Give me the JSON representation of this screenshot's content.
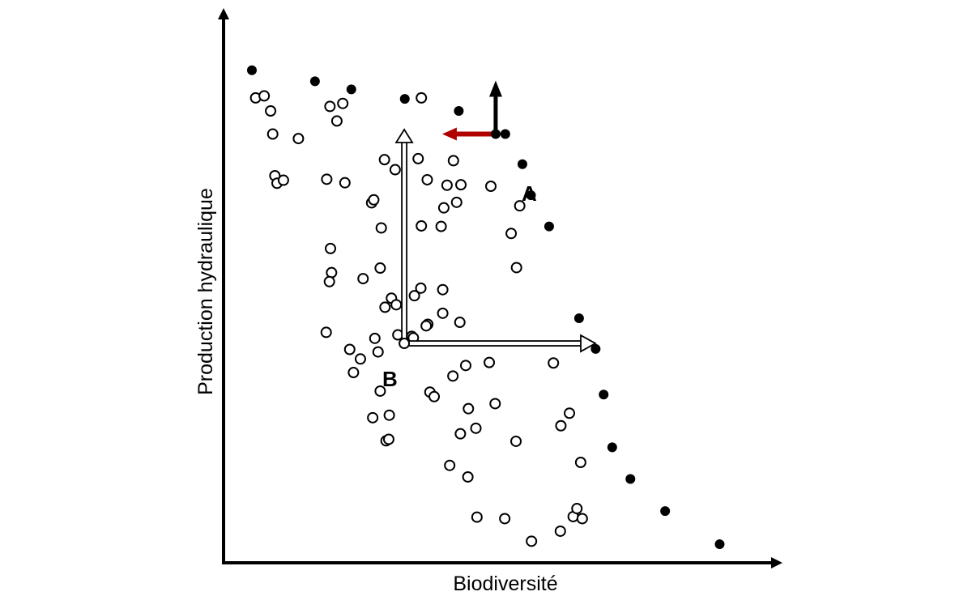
{
  "chart_data": {
    "type": "scatter",
    "xlabel": "Biodiversité",
    "ylabel": "Production hydraulique",
    "xlim": [
      0,
      100
    ],
    "ylim": [
      0,
      100
    ],
    "grid": false,
    "ticks": false,
    "series": [
      {
        "style": "filled",
        "points": [
          [
            5.3,
            98.1
          ],
          [
            17.1,
            95.9
          ],
          [
            23.9,
            94.3
          ],
          [
            33.9,
            92.4
          ],
          [
            44.0,
            90.0
          ],
          [
            52.7,
            85.4
          ],
          [
            55.9,
            79.4
          ],
          [
            57.5,
            73.2
          ],
          [
            60.9,
            67.0
          ],
          [
            66.5,
            48.7
          ],
          [
            69.6,
            42.6
          ],
          [
            71.1,
            33.5
          ],
          [
            72.7,
            23.0
          ],
          [
            76.1,
            16.7
          ],
          [
            82.6,
            10.3
          ],
          [
            92.8,
            3.7
          ]
        ]
      },
      {
        "style": "open",
        "points": [
          [
            6.0,
            92.6
          ],
          [
            7.6,
            93.0
          ],
          [
            8.8,
            90.0
          ],
          [
            9.2,
            85.4
          ],
          [
            9.6,
            77.1
          ],
          [
            14.0,
            84.5
          ],
          [
            10.0,
            75.6
          ],
          [
            11.2,
            76.2
          ],
          [
            19.3,
            76.4
          ],
          [
            22.7,
            75.7
          ],
          [
            19.9,
            90.9
          ],
          [
            21.2,
            88.0
          ],
          [
            22.3,
            91.5
          ],
          [
            27.7,
            71.7
          ],
          [
            28.1,
            72.3
          ],
          [
            29.5,
            66.7
          ],
          [
            30.1,
            80.3
          ],
          [
            32.1,
            78.3
          ],
          [
            37.0,
            92.6
          ],
          [
            36.4,
            80.5
          ],
          [
            37.0,
            67.1
          ],
          [
            38.1,
            76.3
          ],
          [
            40.7,
            67.0
          ],
          [
            41.8,
            75.2
          ],
          [
            43.6,
            71.8
          ],
          [
            41.2,
            70.7
          ],
          [
            44.4,
            75.3
          ],
          [
            43.0,
            80.1
          ],
          [
            50.0,
            75.0
          ],
          [
            53.8,
            65.6
          ],
          [
            55.4,
            71.1
          ],
          [
            54.8,
            58.8
          ],
          [
            20.0,
            62.6
          ],
          [
            20.2,
            57.8
          ],
          [
            19.8,
            56.0
          ],
          [
            26.1,
            56.6
          ],
          [
            29.3,
            58.7
          ],
          [
            30.2,
            50.9
          ],
          [
            31.4,
            52.7
          ],
          [
            32.3,
            51.4
          ],
          [
            35.7,
            53.2
          ],
          [
            36.9,
            54.7
          ],
          [
            41.0,
            54.4
          ],
          [
            38.2,
            47.5
          ],
          [
            44.2,
            47.9
          ],
          [
            41.0,
            49.7
          ],
          [
            35.2,
            45.1
          ],
          [
            32.6,
            45.4
          ],
          [
            28.3,
            44.7
          ],
          [
            28.9,
            42.0
          ],
          [
            25.6,
            40.6
          ],
          [
            23.6,
            42.5
          ],
          [
            24.3,
            37.9
          ],
          [
            19.2,
            45.9
          ],
          [
            49.7,
            39.9
          ],
          [
            45.3,
            39.3
          ],
          [
            37.9,
            47.2
          ],
          [
            35.5,
            44.8
          ],
          [
            29.3,
            34.2
          ],
          [
            27.9,
            28.9
          ],
          [
            31.0,
            29.4
          ],
          [
            30.4,
            24.3
          ],
          [
            30.9,
            24.6
          ],
          [
            38.6,
            34.0
          ],
          [
            39.4,
            33.1
          ],
          [
            42.9,
            37.2
          ],
          [
            45.8,
            30.7
          ],
          [
            47.2,
            26.8
          ],
          [
            44.3,
            25.7
          ],
          [
            50.8,
            31.7
          ],
          [
            54.7,
            24.2
          ],
          [
            42.3,
            19.4
          ],
          [
            45.7,
            17.1
          ],
          [
            47.4,
            9.1
          ],
          [
            52.6,
            8.8
          ],
          [
            57.6,
            4.3
          ],
          [
            63.0,
            6.3
          ],
          [
            65.4,
            9.2
          ],
          [
            66.1,
            10.8
          ],
          [
            67.1,
            8.8
          ],
          [
            63.1,
            27.3
          ],
          [
            64.7,
            29.8
          ],
          [
            66.8,
            20.0
          ],
          [
            61.7,
            39.8
          ]
        ]
      }
    ],
    "annotations": {
      "point_a": {
        "label": "A",
        "x": 50.9,
        "y": 85.4
      },
      "point_b": {
        "label": "B",
        "x": 33.8,
        "y": 43.7
      }
    },
    "arrows": {
      "a_up_color": "#000000",
      "a_left_color": "#b00000",
      "b_arrow_fill": "#ffffff"
    }
  }
}
